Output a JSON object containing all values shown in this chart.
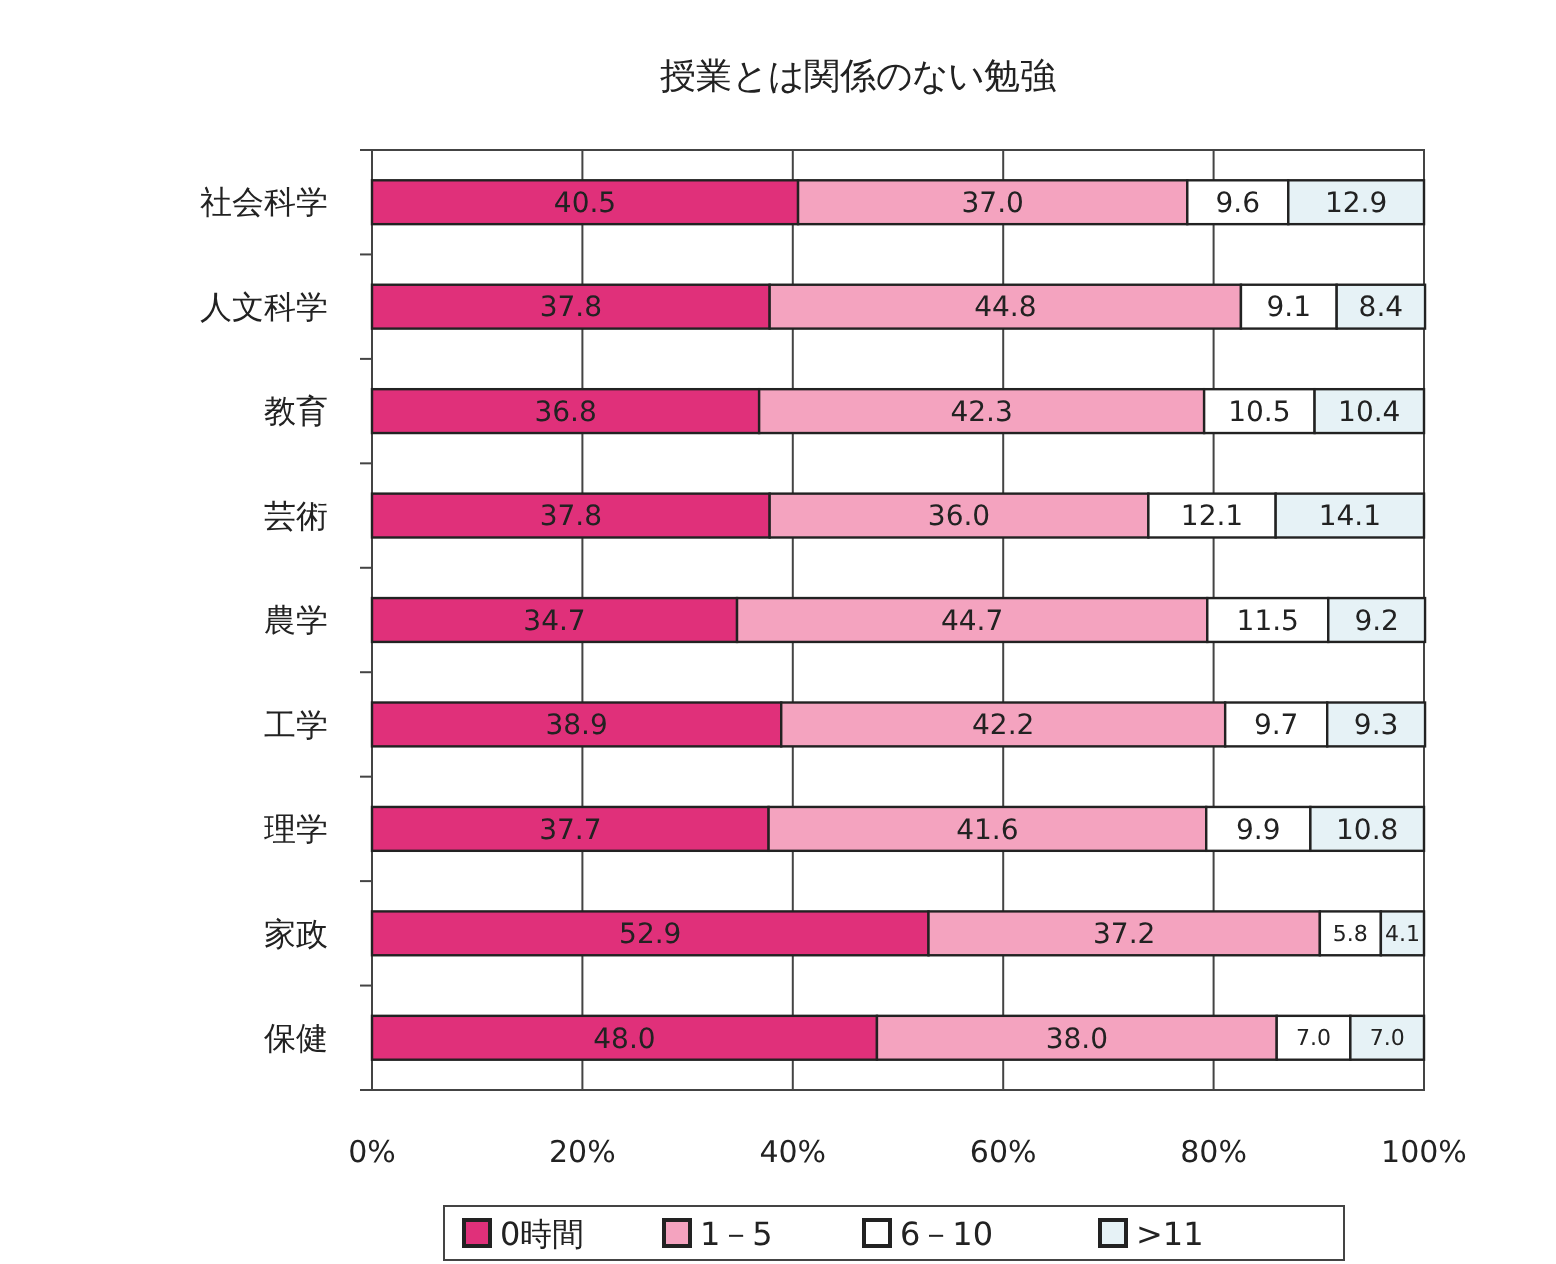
{
  "chart_data": {
    "type": "bar",
    "orientation": "horizontal",
    "stacked": true,
    "title": "授業とは関係のない勉強",
    "categories": [
      "社会科学",
      "人文科学",
      "教育",
      "芸術",
      "農学",
      "工学",
      "理学",
      "家政",
      "保健"
    ],
    "series": [
      {
        "name": "0時間",
        "color": "#e0307a",
        "values": [
          40.5,
          37.8,
          36.8,
          37.8,
          34.7,
          38.9,
          37.7,
          52.9,
          48.0
        ],
        "value_labels": [
          "40.5",
          "37.8",
          "36.8",
          "37.8",
          "34.7",
          "38.9",
          "37.7",
          "52.9",
          "48.0"
        ]
      },
      {
        "name": "1－5",
        "color": "#f4a3bf",
        "values": [
          37.0,
          44.8,
          42.3,
          36.0,
          44.7,
          42.2,
          41.6,
          37.2,
          38.0
        ],
        "value_labels": [
          "37.0",
          "44.8",
          "42.3",
          "36.0",
          "44.7",
          "42.2",
          "41.6",
          "37.2",
          "38.0"
        ]
      },
      {
        "name": "6－10",
        "color": "#ffffff",
        "values": [
          9.6,
          9.1,
          10.5,
          12.1,
          11.5,
          9.7,
          9.9,
          5.8,
          7.0
        ],
        "value_labels": [
          "9.6",
          "9.1",
          "10.5",
          "12.1",
          "11.5",
          "9.7",
          "9.9",
          "5.8",
          "7.0"
        ]
      },
      {
        "name": ">11",
        "color": "#e6f2f6",
        "values": [
          12.9,
          8.4,
          10.4,
          14.1,
          9.2,
          9.3,
          10.8,
          4.1,
          7.0
        ],
        "value_labels": [
          "12.9",
          "8.4",
          "10.4",
          "14.1",
          "9.2",
          "9.3",
          "10.8",
          "4.1",
          "7.0"
        ]
      }
    ],
    "xlim": [
      0,
      100
    ],
    "xticks": [
      {
        "value": 0,
        "label": "0%"
      },
      {
        "value": 20,
        "label": "20%"
      },
      {
        "value": 40,
        "label": "40%"
      },
      {
        "value": 60,
        "label": "60%"
      },
      {
        "value": 80,
        "label": "80%"
      },
      {
        "value": 100,
        "label": "100%"
      }
    ],
    "grid": "x",
    "legend": "bottom"
  }
}
